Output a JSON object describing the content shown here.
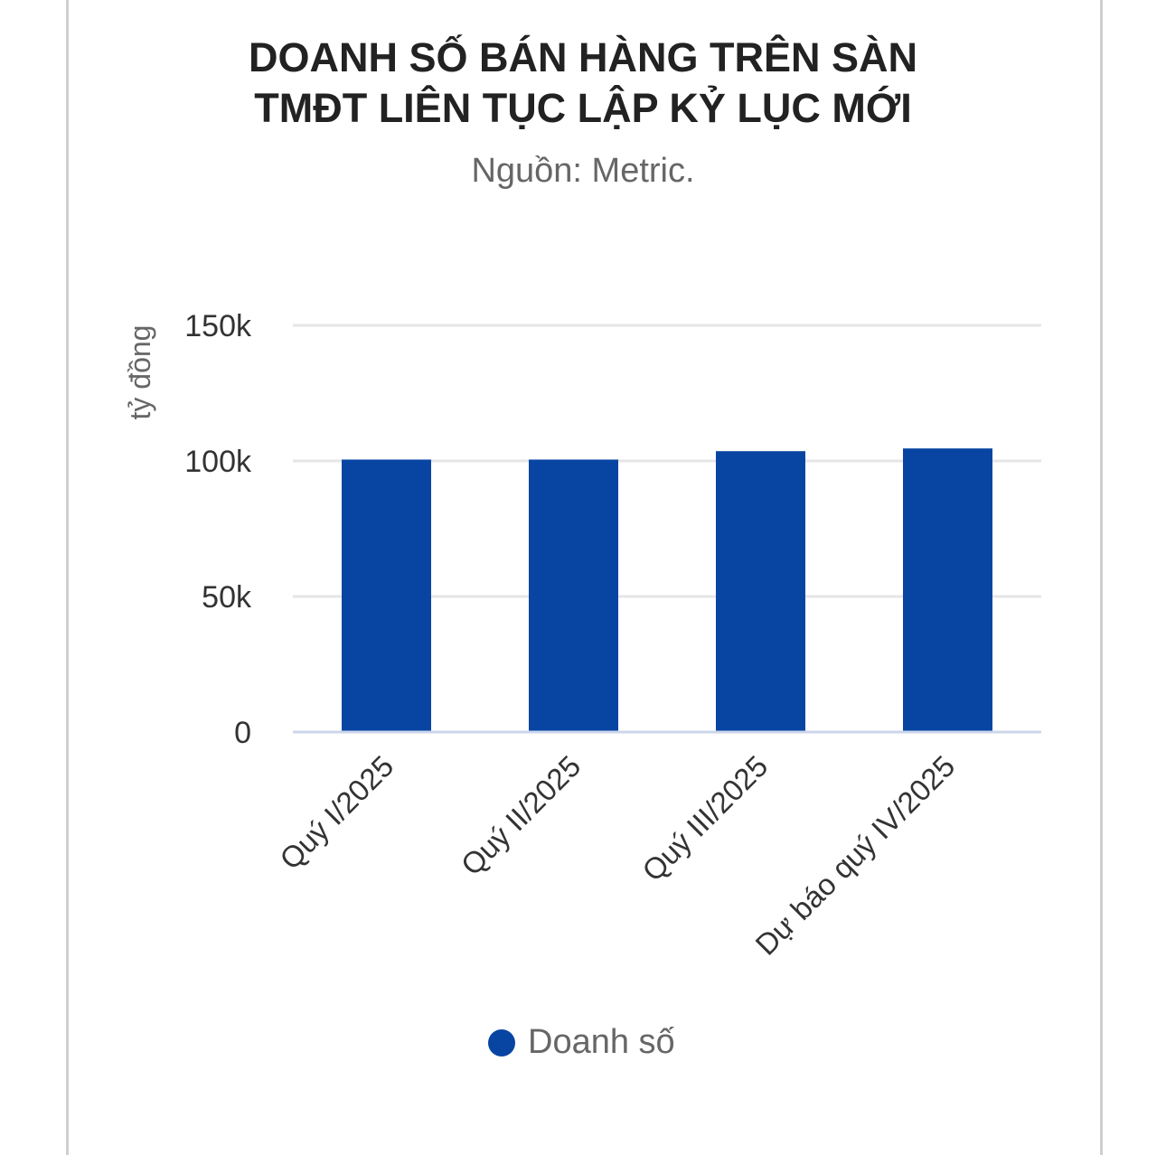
{
  "chart_data": {
    "type": "bar",
    "title_lines": [
      "DOANH SỐ BÁN HÀNG TRÊN SÀN",
      "TMĐT LIÊN TỤC LẬP KỶ LỤC MỚI"
    ],
    "subtitle": "Nguồn: Metric.",
    "ylabel": "tỷ đồng",
    "xlabel": "",
    "ylim": [
      0,
      150000
    ],
    "yticks": [
      0,
      50000,
      100000,
      150000
    ],
    "ytick_labels": [
      "0",
      "50k",
      "100k",
      "150k"
    ],
    "grid": true,
    "categories": [
      "Quý I/2025",
      "Quý II/2025",
      "Quý III/2025",
      "Dự báo quý IV/2025"
    ],
    "series": [
      {
        "name": "Doanh số",
        "values": [
          100500,
          100500,
          103600,
          104600
        ],
        "color": "#0845a3"
      }
    ],
    "legend_position": "bottom"
  }
}
